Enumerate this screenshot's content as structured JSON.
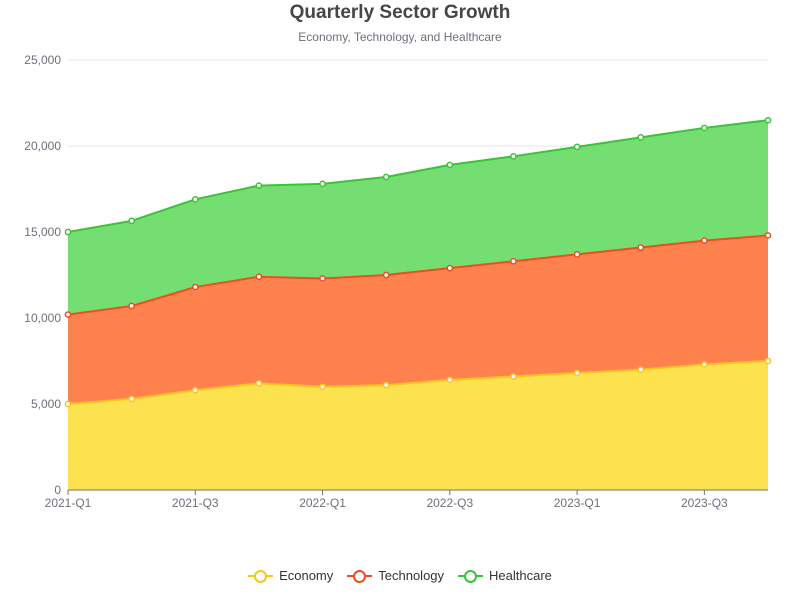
{
  "chart_data": {
    "type": "area",
    "stacked": true,
    "title": "Quarterly Sector Growth",
    "subtitle": "Economy, Technology, and Healthcare",
    "xlabel": "",
    "ylabel": "",
    "categories": [
      "2021-Q1",
      "2021-Q2",
      "2021-Q3",
      "2021-Q4",
      "2022-Q1",
      "2022-Q2",
      "2022-Q3",
      "2022-Q4",
      "2023-Q1",
      "2023-Q2",
      "2023-Q3",
      "2023-Q4"
    ],
    "x_tick_labels": [
      "2021-Q1",
      "2021-Q3",
      "2022-Q1",
      "2022-Q3",
      "2023-Q1",
      "2023-Q3"
    ],
    "y_ticks": [
      "0",
      "5,000",
      "10,000",
      "15,000",
      "20,000",
      "25,000"
    ],
    "ylim": [
      0,
      25000
    ],
    "grid": true,
    "legend_position": "bottom",
    "series": [
      {
        "name": "Economy",
        "color": "#f9c423",
        "fill": "#fde047",
        "values": [
          5000,
          5300,
          5800,
          6200,
          6000,
          6100,
          6400,
          6600,
          6800,
          7000,
          7300,
          7500
        ]
      },
      {
        "name": "Technology",
        "color": "#e8511f",
        "fill": "#ff7a45",
        "values": [
          5200,
          5400,
          6000,
          6200,
          6300,
          6400,
          6500,
          6700,
          6900,
          7100,
          7200,
          7300
        ]
      },
      {
        "name": "Healthcare",
        "color": "#3cc238",
        "fill": "#6ddc6b",
        "values": [
          4800,
          4950,
          5100,
          5300,
          5500,
          5700,
          6000,
          6100,
          6250,
          6400,
          6550,
          6700
        ]
      }
    ]
  }
}
